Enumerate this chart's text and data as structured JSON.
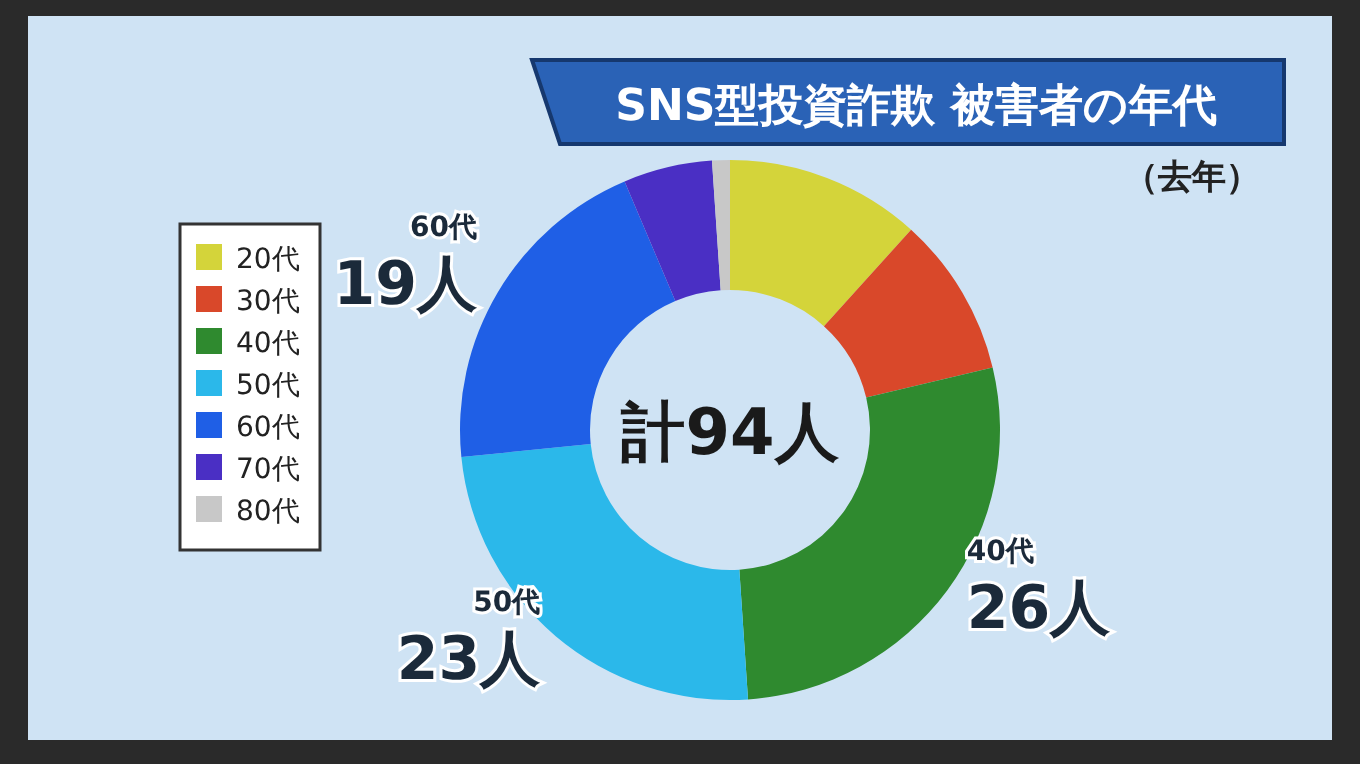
{
  "chart_data": {
    "type": "donut",
    "title": "SNS型投資詐欺 被害者の年代",
    "subtitle": "（去年）",
    "categories": [
      "20代",
      "30代",
      "40代",
      "50代",
      "60代",
      "70代",
      "80代"
    ],
    "values": [
      11,
      9,
      26,
      23,
      19,
      5,
      1
    ],
    "colors": [
      "#d4d43a",
      "#d9482a",
      "#2f8a2f",
      "#2bb8ea",
      "#1f5fe6",
      "#4a2fc4",
      "#c8c8c8"
    ],
    "value_labels": [
      null,
      null,
      "26人",
      "23人",
      "19人",
      null,
      null
    ],
    "annotations": [
      "計94人"
    ],
    "legend": "left"
  }
}
